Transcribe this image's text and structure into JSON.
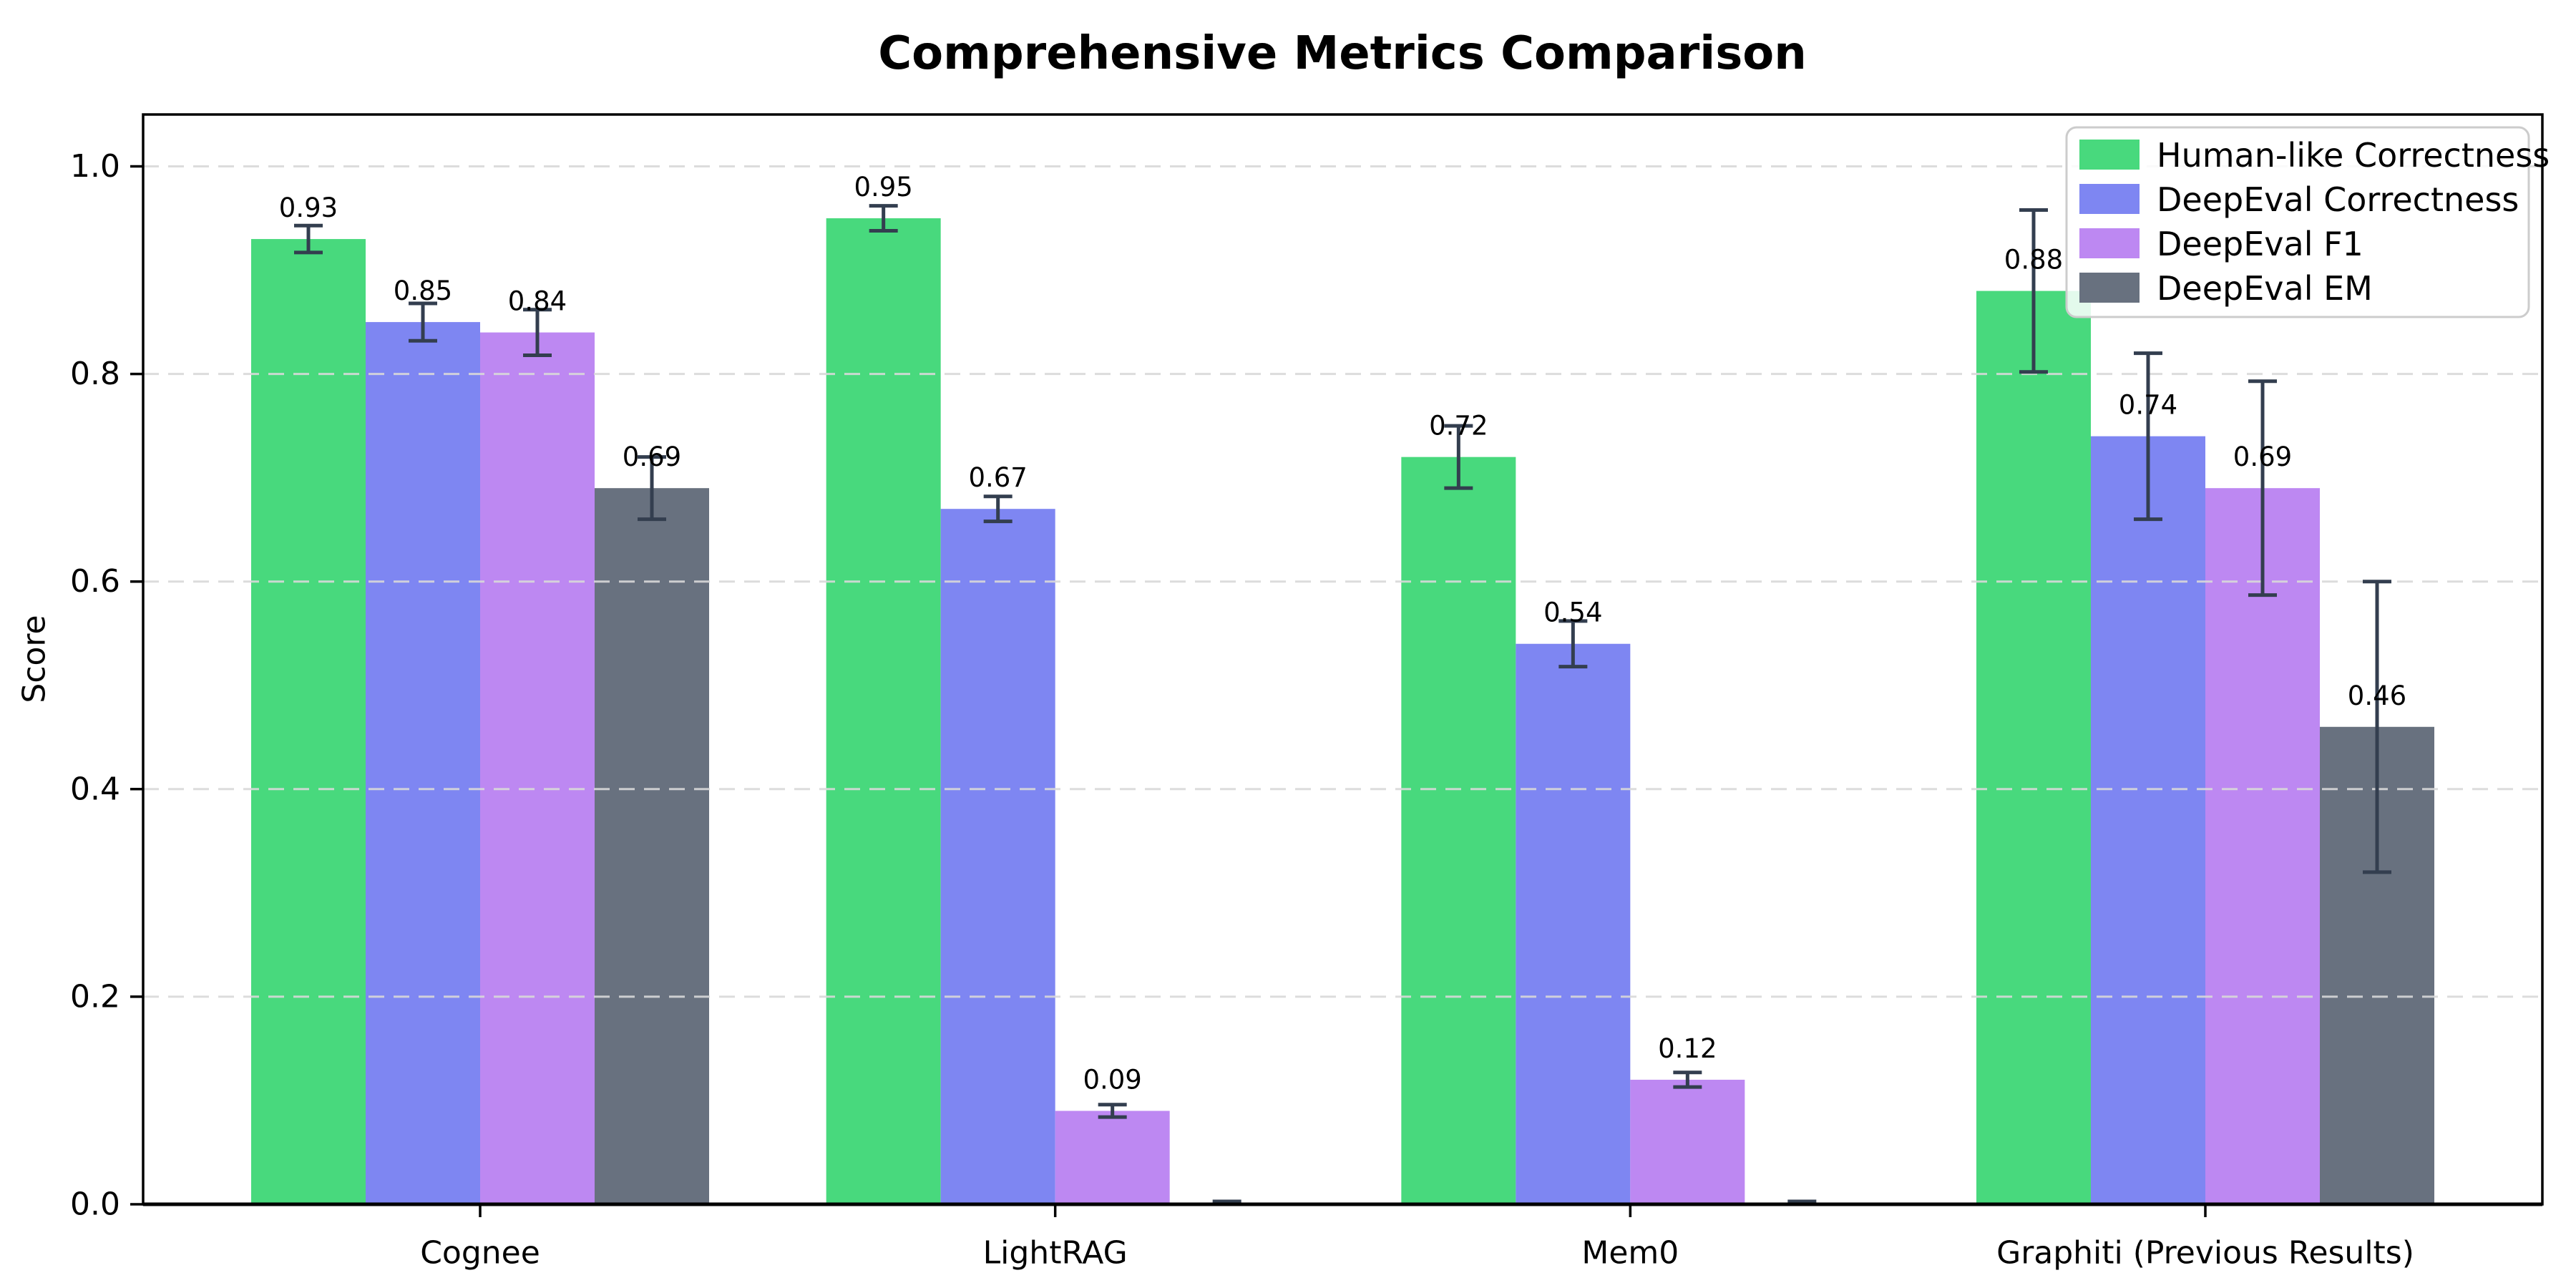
{
  "chart_data": {
    "type": "bar",
    "title": "Comprehensive Metrics Comparison",
    "ylabel": "Score",
    "xlabel": "",
    "categories": [
      "Cognee",
      "LightRAG",
      "Mem0",
      "Graphiti (Previous Results)"
    ],
    "series": [
      {
        "name": "Human-like Correctness",
        "color": "#48d97d",
        "values": [
          0.93,
          0.95,
          0.72,
          0.88
        ],
        "errors": [
          0.013,
          0.012,
          0.03,
          0.078
        ]
      },
      {
        "name": "DeepEval Correctness",
        "color": "#7e86f2",
        "values": [
          0.85,
          0.67,
          0.54,
          0.74
        ],
        "errors": [
          0.018,
          0.012,
          0.022,
          0.08
        ]
      },
      {
        "name": "DeepEval F1",
        "color": "#bd88f2",
        "values": [
          0.84,
          0.09,
          0.12,
          0.69
        ],
        "errors": [
          0.022,
          0.006,
          0.007,
          0.103
        ]
      },
      {
        "name": "DeepEval EM",
        "color": "#68717f",
        "values": [
          0.69,
          0.0,
          0.0,
          0.46
        ],
        "errors": [
          0.03,
          0.002,
          0.002,
          0.14
        ]
      }
    ],
    "value_label_format": "2dp",
    "yticks": [
      0.0,
      0.2,
      0.4,
      0.6,
      0.8,
      1.0
    ],
    "ytick_labels": [
      "0.0",
      "0.2",
      "0.4",
      "0.6",
      "0.8",
      "1.0"
    ],
    "ylim": [
      0,
      1.05
    ],
    "grid": true,
    "grid_color": "#d9d9d9",
    "errorbar_color": "#333e4f",
    "axis_color": "#000000",
    "legend_position": "upper right",
    "legend_border_color": "#cccccc",
    "legend_background": "#ffffff"
  }
}
